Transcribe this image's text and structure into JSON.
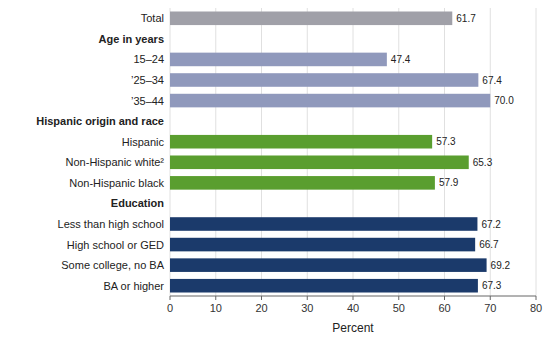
{
  "chart_data": {
    "type": "bar",
    "orientation": "horizontal",
    "categories": [
      "Total",
      "Age in years",
      "15–24",
      "’25–34",
      "’35–44",
      "Hispanic origin and race",
      "Hispanic",
      "Non-Hispanic white²",
      "Non-Hispanic black",
      "Education",
      "Less than high school",
      "High school or GED",
      "Some college, no BA",
      "BA or higher"
    ],
    "values": [
      61.7,
      null,
      47.4,
      67.4,
      70.0,
      null,
      57.3,
      65.3,
      57.9,
      null,
      67.2,
      66.7,
      69.2,
      67.3
    ],
    "value_labels": [
      "61.7",
      null,
      "47.4",
      "67.4",
      "70.0",
      null,
      "57.3",
      "65.3",
      "57.9",
      null,
      "67.2",
      "66.7",
      "69.2",
      "67.3"
    ],
    "colors": [
      "#a0a0a8",
      null,
      "#9099bc",
      "#9099bc",
      "#9099bc",
      null,
      "#5a9e2f",
      "#5a9e2f",
      "#5a9e2f",
      null,
      "#1b3a6b",
      "#1b3a6b",
      "#1b3a6b",
      "#1b3a6b"
    ],
    "xlim": [
      0,
      80
    ],
    "xticks": [
      0,
      10,
      20,
      30,
      40,
      50,
      60,
      70,
      80
    ],
    "xlabel": "Percent",
    "grid": true,
    "data_labels": true
  }
}
